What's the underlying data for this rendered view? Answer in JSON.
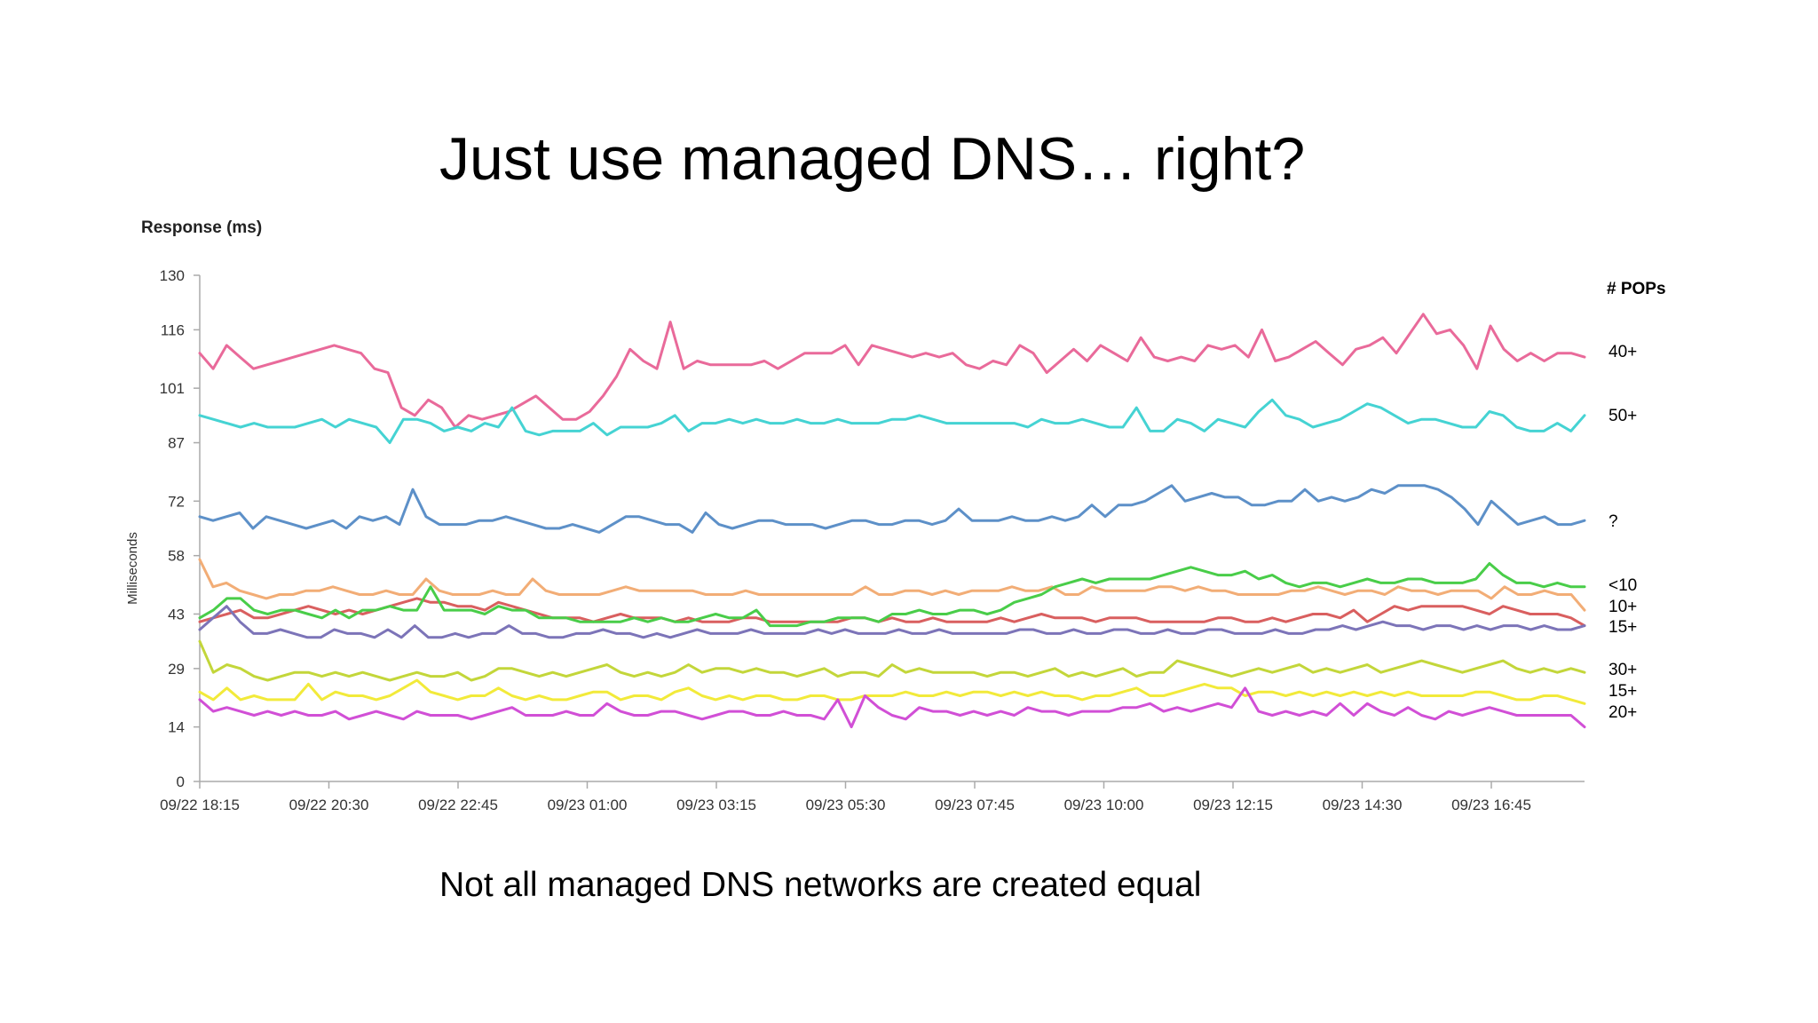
{
  "slide": {
    "title": "Just use managed DNS… right?",
    "caption": "Not all managed DNS networks are created equal"
  },
  "chart_data": {
    "type": "line",
    "title": "Response (ms)",
    "ylabel": "Milliseconds",
    "xlabel": "",
    "ylim": [
      0,
      130
    ],
    "y_ticks": [
      "0",
      "14",
      "29",
      "43",
      "58",
      "72",
      "87",
      "101",
      "116",
      "130"
    ],
    "x_ticks": [
      "09/22 18:15",
      "09/22 20:30",
      "09/22 22:45",
      "09/23 01:00",
      "09/23 03:15",
      "09/23 05:30",
      "09/23 07:45",
      "09/23 10:00",
      "09/23 12:15",
      "09/23 14:30",
      "09/23 16:45"
    ],
    "legend_title": "# POPs",
    "legend_placement": "right",
    "grid": false,
    "series": [
      {
        "name": "40+",
        "color": "#e96a9a",
        "values": [
          110,
          106,
          112,
          109,
          106,
          107,
          108,
          109,
          110,
          111,
          112,
          111,
          110,
          106,
          105,
          96,
          94,
          98,
          96,
          91,
          94,
          93,
          94,
          95,
          97,
          99,
          96,
          93,
          93,
          95,
          99,
          104,
          111,
          108,
          106,
          118,
          106,
          108,
          107,
          107,
          107,
          107,
          108,
          106,
          108,
          110,
          110,
          110,
          112,
          107,
          112,
          111,
          110,
          109,
          110,
          109,
          110,
          107,
          106,
          108,
          107,
          112,
          110,
          105,
          108,
          111,
          108,
          112,
          110,
          108,
          114,
          109,
          108,
          109,
          108,
          112,
          111,
          112,
          109,
          116,
          108,
          109,
          111,
          113,
          110,
          107,
          111,
          112,
          114,
          110,
          115,
          120,
          115,
          116,
          112,
          106,
          117,
          111,
          108,
          110,
          108,
          110,
          110,
          109
        ]
      },
      {
        "name": "50+",
        "color": "#45d3d3",
        "values": [
          94,
          93,
          92,
          91,
          92,
          91,
          91,
          91,
          92,
          93,
          91,
          93,
          92,
          91,
          87,
          93,
          93,
          92,
          90,
          91,
          90,
          92,
          91,
          96,
          90,
          89,
          90,
          90,
          90,
          92,
          89,
          91,
          91,
          91,
          92,
          94,
          90,
          92,
          92,
          93,
          92,
          93,
          92,
          92,
          93,
          92,
          92,
          93,
          92,
          92,
          92,
          93,
          93,
          94,
          93,
          92,
          92,
          92,
          92,
          92,
          92,
          91,
          93,
          92,
          92,
          93,
          92,
          91,
          91,
          96,
          90,
          90,
          93,
          92,
          90,
          93,
          92,
          91,
          95,
          98,
          94,
          93,
          91,
          92,
          93,
          95,
          97,
          96,
          94,
          92,
          93,
          93,
          92,
          91,
          91,
          95,
          94,
          91,
          90,
          90,
          92,
          90,
          94
        ]
      },
      {
        "name": "?",
        "color": "#5d90c8",
        "values": [
          68,
          67,
          68,
          69,
          65,
          68,
          67,
          66,
          65,
          66,
          67,
          65,
          68,
          67,
          68,
          66,
          75,
          68,
          66,
          66,
          66,
          67,
          67,
          68,
          67,
          66,
          65,
          65,
          66,
          65,
          64,
          66,
          68,
          68,
          67,
          66,
          66,
          64,
          69,
          66,
          65,
          66,
          67,
          67,
          66,
          66,
          66,
          65,
          66,
          67,
          67,
          66,
          66,
          67,
          67,
          66,
          67,
          70,
          67,
          67,
          67,
          68,
          67,
          67,
          68,
          67,
          68,
          71,
          68,
          71,
          71,
          72,
          74,
          76,
          72,
          73,
          74,
          73,
          73,
          71,
          71,
          72,
          72,
          75,
          72,
          73,
          72,
          73,
          75,
          74,
          76,
          76,
          76,
          75,
          73,
          70,
          66,
          72,
          69,
          66,
          67,
          68,
          66,
          66,
          67
        ]
      },
      {
        "name": "<10",
        "color": "#f2ad76",
        "values": [
          57,
          50,
          51,
          49,
          48,
          47,
          48,
          48,
          49,
          49,
          50,
          49,
          48,
          48,
          49,
          48,
          48,
          52,
          49,
          48,
          48,
          48,
          49,
          48,
          48,
          52,
          49,
          48,
          48,
          48,
          48,
          49,
          50,
          49,
          49,
          49,
          49,
          49,
          48,
          48,
          48,
          49,
          48,
          48,
          48,
          48,
          48,
          48,
          48,
          48,
          50,
          48,
          48,
          49,
          49,
          48,
          49,
          48,
          49,
          49,
          49,
          50,
          49,
          49,
          50,
          48,
          48,
          50,
          49,
          49,
          49,
          49,
          50,
          50,
          49,
          50,
          49,
          49,
          48,
          48,
          48,
          48,
          49,
          49,
          50,
          49,
          48,
          49,
          49,
          48,
          50,
          49,
          49,
          48,
          49,
          49,
          49,
          47,
          50,
          48,
          48,
          49,
          48,
          48,
          44
        ]
      },
      {
        "name": "10+",
        "color": "#d95f5f",
        "values": [
          41,
          42,
          43,
          44,
          42,
          42,
          43,
          44,
          45,
          44,
          43,
          44,
          43,
          44,
          45,
          46,
          47,
          46,
          46,
          45,
          45,
          44,
          46,
          45,
          44,
          43,
          42,
          42,
          42,
          41,
          42,
          43,
          42,
          42,
          42,
          41,
          42,
          41,
          41,
          41,
          42,
          42,
          41,
          41,
          41,
          41,
          41,
          41,
          42,
          42,
          41,
          42,
          41,
          41,
          42,
          41,
          41,
          41,
          41,
          42,
          41,
          42,
          43,
          42,
          42,
          42,
          41,
          42,
          42,
          42,
          41,
          41,
          41,
          41,
          41,
          42,
          42,
          41,
          41,
          42,
          41,
          42,
          43,
          43,
          42,
          44,
          41,
          43,
          45,
          44,
          45,
          45,
          45,
          45,
          44,
          43,
          45,
          44,
          43,
          43,
          43,
          42,
          40
        ]
      },
      {
        "name": "15+",
        "color": "#7c74b8",
        "values": [
          39,
          42,
          45,
          41,
          38,
          38,
          39,
          38,
          37,
          37,
          39,
          38,
          38,
          37,
          39,
          37,
          40,
          37,
          37,
          38,
          37,
          38,
          38,
          40,
          38,
          38,
          37,
          37,
          38,
          38,
          39,
          38,
          38,
          37,
          38,
          37,
          38,
          39,
          38,
          38,
          38,
          39,
          38,
          38,
          38,
          38,
          39,
          38,
          39,
          38,
          38,
          38,
          39,
          38,
          38,
          39,
          38,
          38,
          38,
          38,
          38,
          39,
          39,
          38,
          38,
          39,
          38,
          38,
          39,
          39,
          38,
          38,
          39,
          38,
          38,
          39,
          39,
          38,
          38,
          38,
          39,
          38,
          38,
          39,
          39,
          40,
          39,
          40,
          41,
          40,
          40,
          39,
          40,
          40,
          39,
          40,
          39,
          40,
          40,
          39,
          40,
          39,
          39,
          40
        ]
      },
      {
        "name": "<10",
        "color": "#49cd49",
        "values": [
          42,
          44,
          47,
          47,
          44,
          43,
          44,
          44,
          43,
          42,
          44,
          42,
          44,
          44,
          45,
          44,
          44,
          50,
          44,
          44,
          44,
          43,
          45,
          44,
          44,
          42,
          42,
          42,
          41,
          41,
          41,
          41,
          42,
          41,
          42,
          41,
          41,
          42,
          43,
          42,
          42,
          44,
          40,
          40,
          40,
          41,
          41,
          42,
          42,
          42,
          41,
          43,
          43,
          44,
          43,
          43,
          44,
          44,
          43,
          44,
          46,
          47,
          48,
          50,
          51,
          52,
          51,
          52,
          52,
          52,
          52,
          53,
          54,
          55,
          54,
          53,
          53,
          54,
          52,
          53,
          51,
          50,
          51,
          51,
          50,
          51,
          52,
          51,
          51,
          52,
          52,
          51,
          51,
          51,
          52,
          56,
          53,
          51,
          51,
          50,
          51,
          50,
          50
        ]
      },
      {
        "name": "30+",
        "color": "#c3d63a",
        "values": [
          36,
          28,
          30,
          29,
          27,
          26,
          27,
          28,
          28,
          27,
          28,
          27,
          28,
          27,
          26,
          27,
          28,
          27,
          27,
          28,
          26,
          27,
          29,
          29,
          28,
          27,
          28,
          27,
          28,
          29,
          30,
          28,
          27,
          28,
          27,
          28,
          30,
          28,
          29,
          29,
          28,
          29,
          28,
          28,
          27,
          28,
          29,
          27,
          28,
          28,
          27,
          30,
          28,
          29,
          28,
          28,
          28,
          28,
          27,
          28,
          28,
          27,
          28,
          29,
          27,
          28,
          27,
          28,
          29,
          27,
          28,
          28,
          31,
          30,
          29,
          28,
          27,
          28,
          29,
          28,
          29,
          30,
          28,
          29,
          28,
          29,
          30,
          28,
          29,
          30,
          31,
          30,
          29,
          28,
          29,
          30,
          31,
          29,
          28,
          29,
          28,
          29,
          28
        ]
      },
      {
        "name": "15+",
        "color": "#f2ea3a",
        "values": [
          23,
          21,
          24,
          21,
          22,
          21,
          21,
          21,
          25,
          21,
          23,
          22,
          22,
          21,
          22,
          24,
          26,
          23,
          22,
          21,
          22,
          22,
          24,
          22,
          21,
          22,
          21,
          21,
          22,
          23,
          23,
          21,
          22,
          22,
          21,
          23,
          24,
          22,
          21,
          22,
          21,
          22,
          22,
          21,
          21,
          22,
          22,
          21,
          21,
          22,
          22,
          22,
          23,
          22,
          22,
          23,
          22,
          23,
          23,
          22,
          23,
          22,
          23,
          22,
          22,
          21,
          22,
          22,
          23,
          24,
          22,
          22,
          23,
          24,
          25,
          24,
          24,
          22,
          23,
          23,
          22,
          23,
          22,
          23,
          22,
          23,
          22,
          23,
          22,
          23,
          22,
          22,
          22,
          22,
          23,
          23,
          22,
          21,
          21,
          22,
          22,
          21,
          20
        ]
      },
      {
        "name": "20+",
        "color": "#d14fd6",
        "values": [
          21,
          18,
          19,
          18,
          17,
          18,
          17,
          18,
          17,
          17,
          18,
          16,
          17,
          18,
          17,
          16,
          18,
          17,
          17,
          17,
          16,
          17,
          18,
          19,
          17,
          17,
          17,
          18,
          17,
          17,
          20,
          18,
          17,
          17,
          18,
          18,
          17,
          16,
          17,
          18,
          18,
          17,
          17,
          18,
          17,
          17,
          16,
          21,
          14,
          22,
          19,
          17,
          16,
          19,
          18,
          18,
          17,
          18,
          17,
          18,
          17,
          19,
          18,
          18,
          17,
          18,
          18,
          18,
          19,
          19,
          20,
          18,
          19,
          18,
          19,
          20,
          19,
          24,
          18,
          17,
          18,
          17,
          18,
          17,
          20,
          17,
          20,
          18,
          17,
          19,
          17,
          16,
          18,
          17,
          18,
          19,
          18,
          17,
          17,
          17,
          17,
          17,
          14
        ]
      }
    ]
  }
}
